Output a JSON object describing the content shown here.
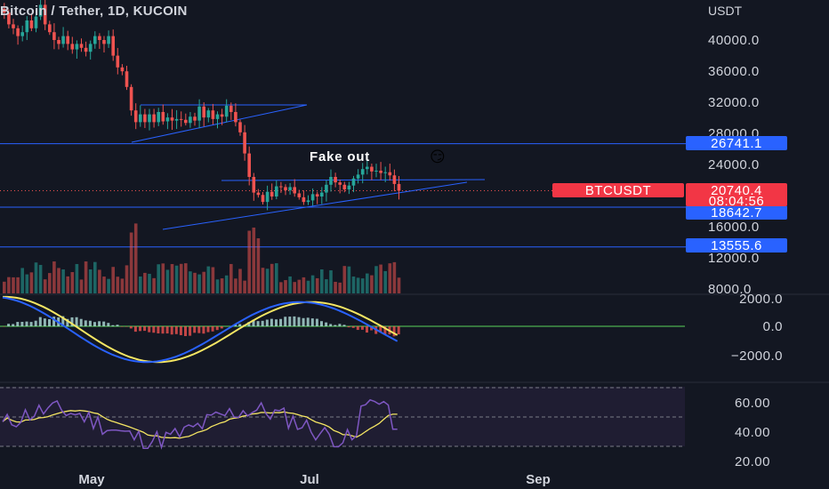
{
  "header": {
    "title": "Bitcoin / Tether, 1D, KUCOIN",
    "unit": "USDT"
  },
  "annotation": {
    "text": "Fake out",
    "emoji": "😏"
  },
  "symbol_tag": "BTCUSDT",
  "price_labels": [
    {
      "value": "26741.1",
      "color": "#2962ff"
    },
    {
      "value": "18642.7",
      "color": "#2962ff"
    },
    {
      "value": "13555.6",
      "color": "#2962ff"
    }
  ],
  "current_price": {
    "value": "20740.4",
    "countdown": "08:04:56",
    "color": "#f23645"
  },
  "colors": {
    "background": "#131722",
    "up": "#26a69a",
    "down": "#ef5350",
    "level_line": "#2962ff",
    "macd_line": "#2962ff",
    "signal_line": "#f5e663",
    "rsi_line": "#7e57c2",
    "rsi_ma": "#f5e663",
    "zero_line": "#4caf50"
  },
  "chart_data": [
    {
      "type": "candlestick",
      "title": "Bitcoin / Tether, 1D, KUCOIN",
      "y_unit": "USDT",
      "y_ticks": [
        "40000.0",
        "36000.0",
        "32000.0",
        "28000.0",
        "24000.0",
        "16000.0",
        "12000.0",
        "8000.0"
      ],
      "x_ticks": [
        "May",
        "Jul",
        "Sep"
      ],
      "horizontal_levels": [
        26741.1,
        18642.7,
        13555.6
      ],
      "close_approx": [
        43500,
        42000,
        41500,
        40500,
        41000,
        42500,
        41500,
        43000,
        44500,
        42000,
        41000,
        40000,
        39500,
        40500,
        39500,
        38800,
        39500,
        39000,
        38500,
        39500,
        40500,
        40000,
        39500,
        40500,
        38000,
        36500,
        36000,
        34000,
        31000,
        29500,
        30500,
        29500,
        30500,
        29500,
        30800,
        29600,
        30100,
        29700,
        29900,
        29800,
        29400,
        30200,
        29700,
        31500,
        30100,
        31000,
        29900,
        30500,
        30200,
        31600,
        30800,
        29500,
        28200,
        25500,
        22500,
        20500,
        20200,
        19300,
        20600,
        20000,
        21300,
        21200,
        20800,
        21200,
        20400,
        19900,
        19300,
        19500,
        20300,
        20000,
        20500,
        21500,
        22500,
        21800,
        21500,
        20900,
        21400,
        22300,
        22800,
        23500,
        23800,
        23200,
        23300,
        23000,
        23100,
        22700,
        21600,
        20740
      ]
    },
    {
      "type": "bar",
      "name": "Volume",
      "series_colors": "up/down",
      "values_approx": "relative heights only; spike near mid-June"
    },
    {
      "type": "line",
      "name": "MACD",
      "y_ticks": [
        "2000.0",
        "0.0",
        "−2000.0"
      ],
      "series": [
        {
          "name": "MACD",
          "color": "#2962ff"
        },
        {
          "name": "Signal",
          "color": "#f5e663"
        }
      ]
    },
    {
      "type": "line",
      "name": "RSI",
      "y_ticks": [
        "60.00",
        "40.00",
        "20.00"
      ],
      "bands": [
        70,
        30
      ]
    }
  ]
}
